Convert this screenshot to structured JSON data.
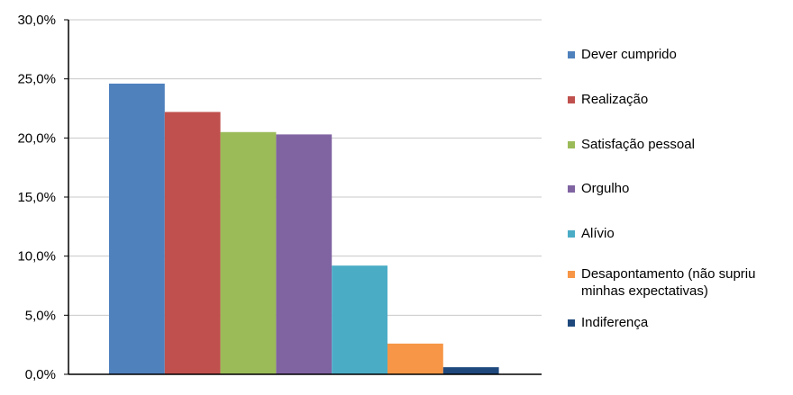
{
  "chart_data": {
    "type": "bar",
    "title": "",
    "xlabel": "",
    "ylabel": "",
    "ylim": [
      0,
      30
    ],
    "y_ticks": [
      "0,0%",
      "5,0%",
      "10,0%",
      "15,0%",
      "20,0%",
      "25,0%",
      "30,0%"
    ],
    "grid": true,
    "legend_position": "right",
    "series": [
      {
        "name": "Dever cumprido",
        "value": 24.6,
        "color": "#4F81BD"
      },
      {
        "name": "Realização",
        "value": 22.2,
        "color": "#C0504D"
      },
      {
        "name": "Satisfação pessoal",
        "value": 20.5,
        "color": "#9BBB59"
      },
      {
        "name": "Orgulho",
        "value": 20.3,
        "color": "#8064A2"
      },
      {
        "name": "Alívio",
        "value": 9.2,
        "color": "#4BACC6"
      },
      {
        "name": "Desapontamento (não supriu minhas expectativas)",
        "value": 2.6,
        "color": "#F79646"
      },
      {
        "name": "Indiferença",
        "value": 0.6,
        "color": "#1F497D"
      }
    ]
  }
}
